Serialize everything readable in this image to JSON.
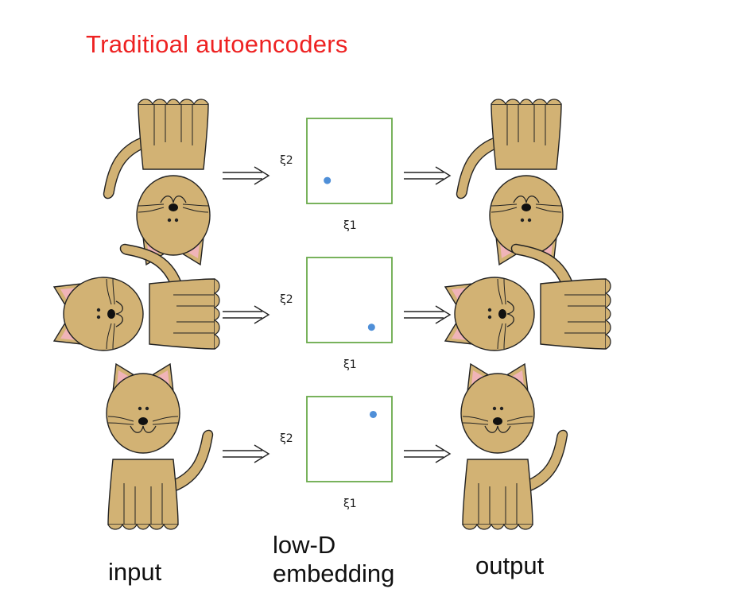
{
  "title": "Traditioal autoencoders",
  "labels": {
    "input": "input",
    "lowd_line1": "low-D",
    "lowd_line2": "embedding",
    "output": "output"
  },
  "axis": {
    "x": "ξ1",
    "y": "ξ2"
  },
  "colors": {
    "title": "#ee2222",
    "box_border": "#6aaa4a",
    "point": "#4f8fd8",
    "cat_fill": "#d2b274",
    "cat_ear_inner": "#f0b4b8",
    "outline": "#222222"
  },
  "rows": [
    {
      "orientation": "upside-down",
      "embedding_point": {
        "xi1": 0.24,
        "xi2": 0.27
      }
    },
    {
      "orientation": "rotated-right",
      "embedding_point": {
        "xi1": 0.76,
        "xi2": 0.18
      }
    },
    {
      "orientation": "upright",
      "embedding_point": {
        "xi1": 0.78,
        "xi2": 0.79
      }
    }
  ]
}
